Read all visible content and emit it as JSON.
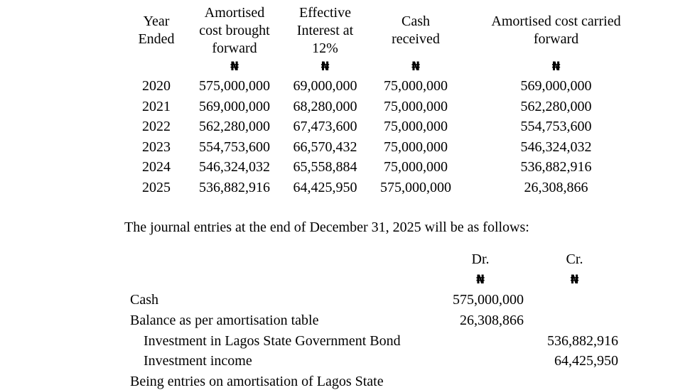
{
  "table": {
    "columns": [
      "Year\nEnded",
      "Amortised\ncost brought\nforward",
      "Effective\nInterest at\n12%",
      "Cash\nreceived",
      "Amortised cost carried\nforward"
    ],
    "currency_symbol": "₦",
    "rows": [
      {
        "year": "2020",
        "brought_forward": "575,000,000",
        "effective_interest": "69,000,000",
        "cash_received": "75,000,000",
        "carried_forward": "569,000,000"
      },
      {
        "year": "2021",
        "brought_forward": "569,000,000",
        "effective_interest": "68,280,000",
        "cash_received": "75,000,000",
        "carried_forward": "562,280,000"
      },
      {
        "year": "2022",
        "brought_forward": "562,280,000",
        "effective_interest": "67,473,600",
        "cash_received": "75,000,000",
        "carried_forward": "554,753,600"
      },
      {
        "year": "2023",
        "brought_forward": "554,753,600",
        "effective_interest": "66,570,432",
        "cash_received": "75,000,000",
        "carried_forward": "546,324,032"
      },
      {
        "year": "2024",
        "brought_forward": "546,324,032",
        "effective_interest": "65,558,884",
        "cash_received": "75,000,000",
        "carried_forward": "536,882,916"
      },
      {
        "year": "2025",
        "brought_forward": "536,882,916",
        "effective_interest": "64,425,950",
        "cash_received": "575,000,000",
        "carried_forward": "26,308,866"
      }
    ]
  },
  "paragraph": "The journal entries at the end of December 31, 2025 will be as follows:",
  "journal": {
    "dr_header": "Dr.",
    "cr_header": "Cr.",
    "currency_symbol": "₦",
    "entries": [
      {
        "label": "Cash",
        "dr": "575,000,000",
        "cr": ""
      },
      {
        "label": "Balance as per amortisation table",
        "dr": "26,308,866",
        "cr": ""
      },
      {
        "label": "Investment in Lagos State Government Bond",
        "dr": "",
        "cr": "536,882,916"
      },
      {
        "label": "Investment income",
        "dr": "",
        "cr": "64,425,950"
      },
      {
        "label": "Being entries on amortisation of Lagos State",
        "dr": "",
        "cr": ""
      }
    ]
  }
}
